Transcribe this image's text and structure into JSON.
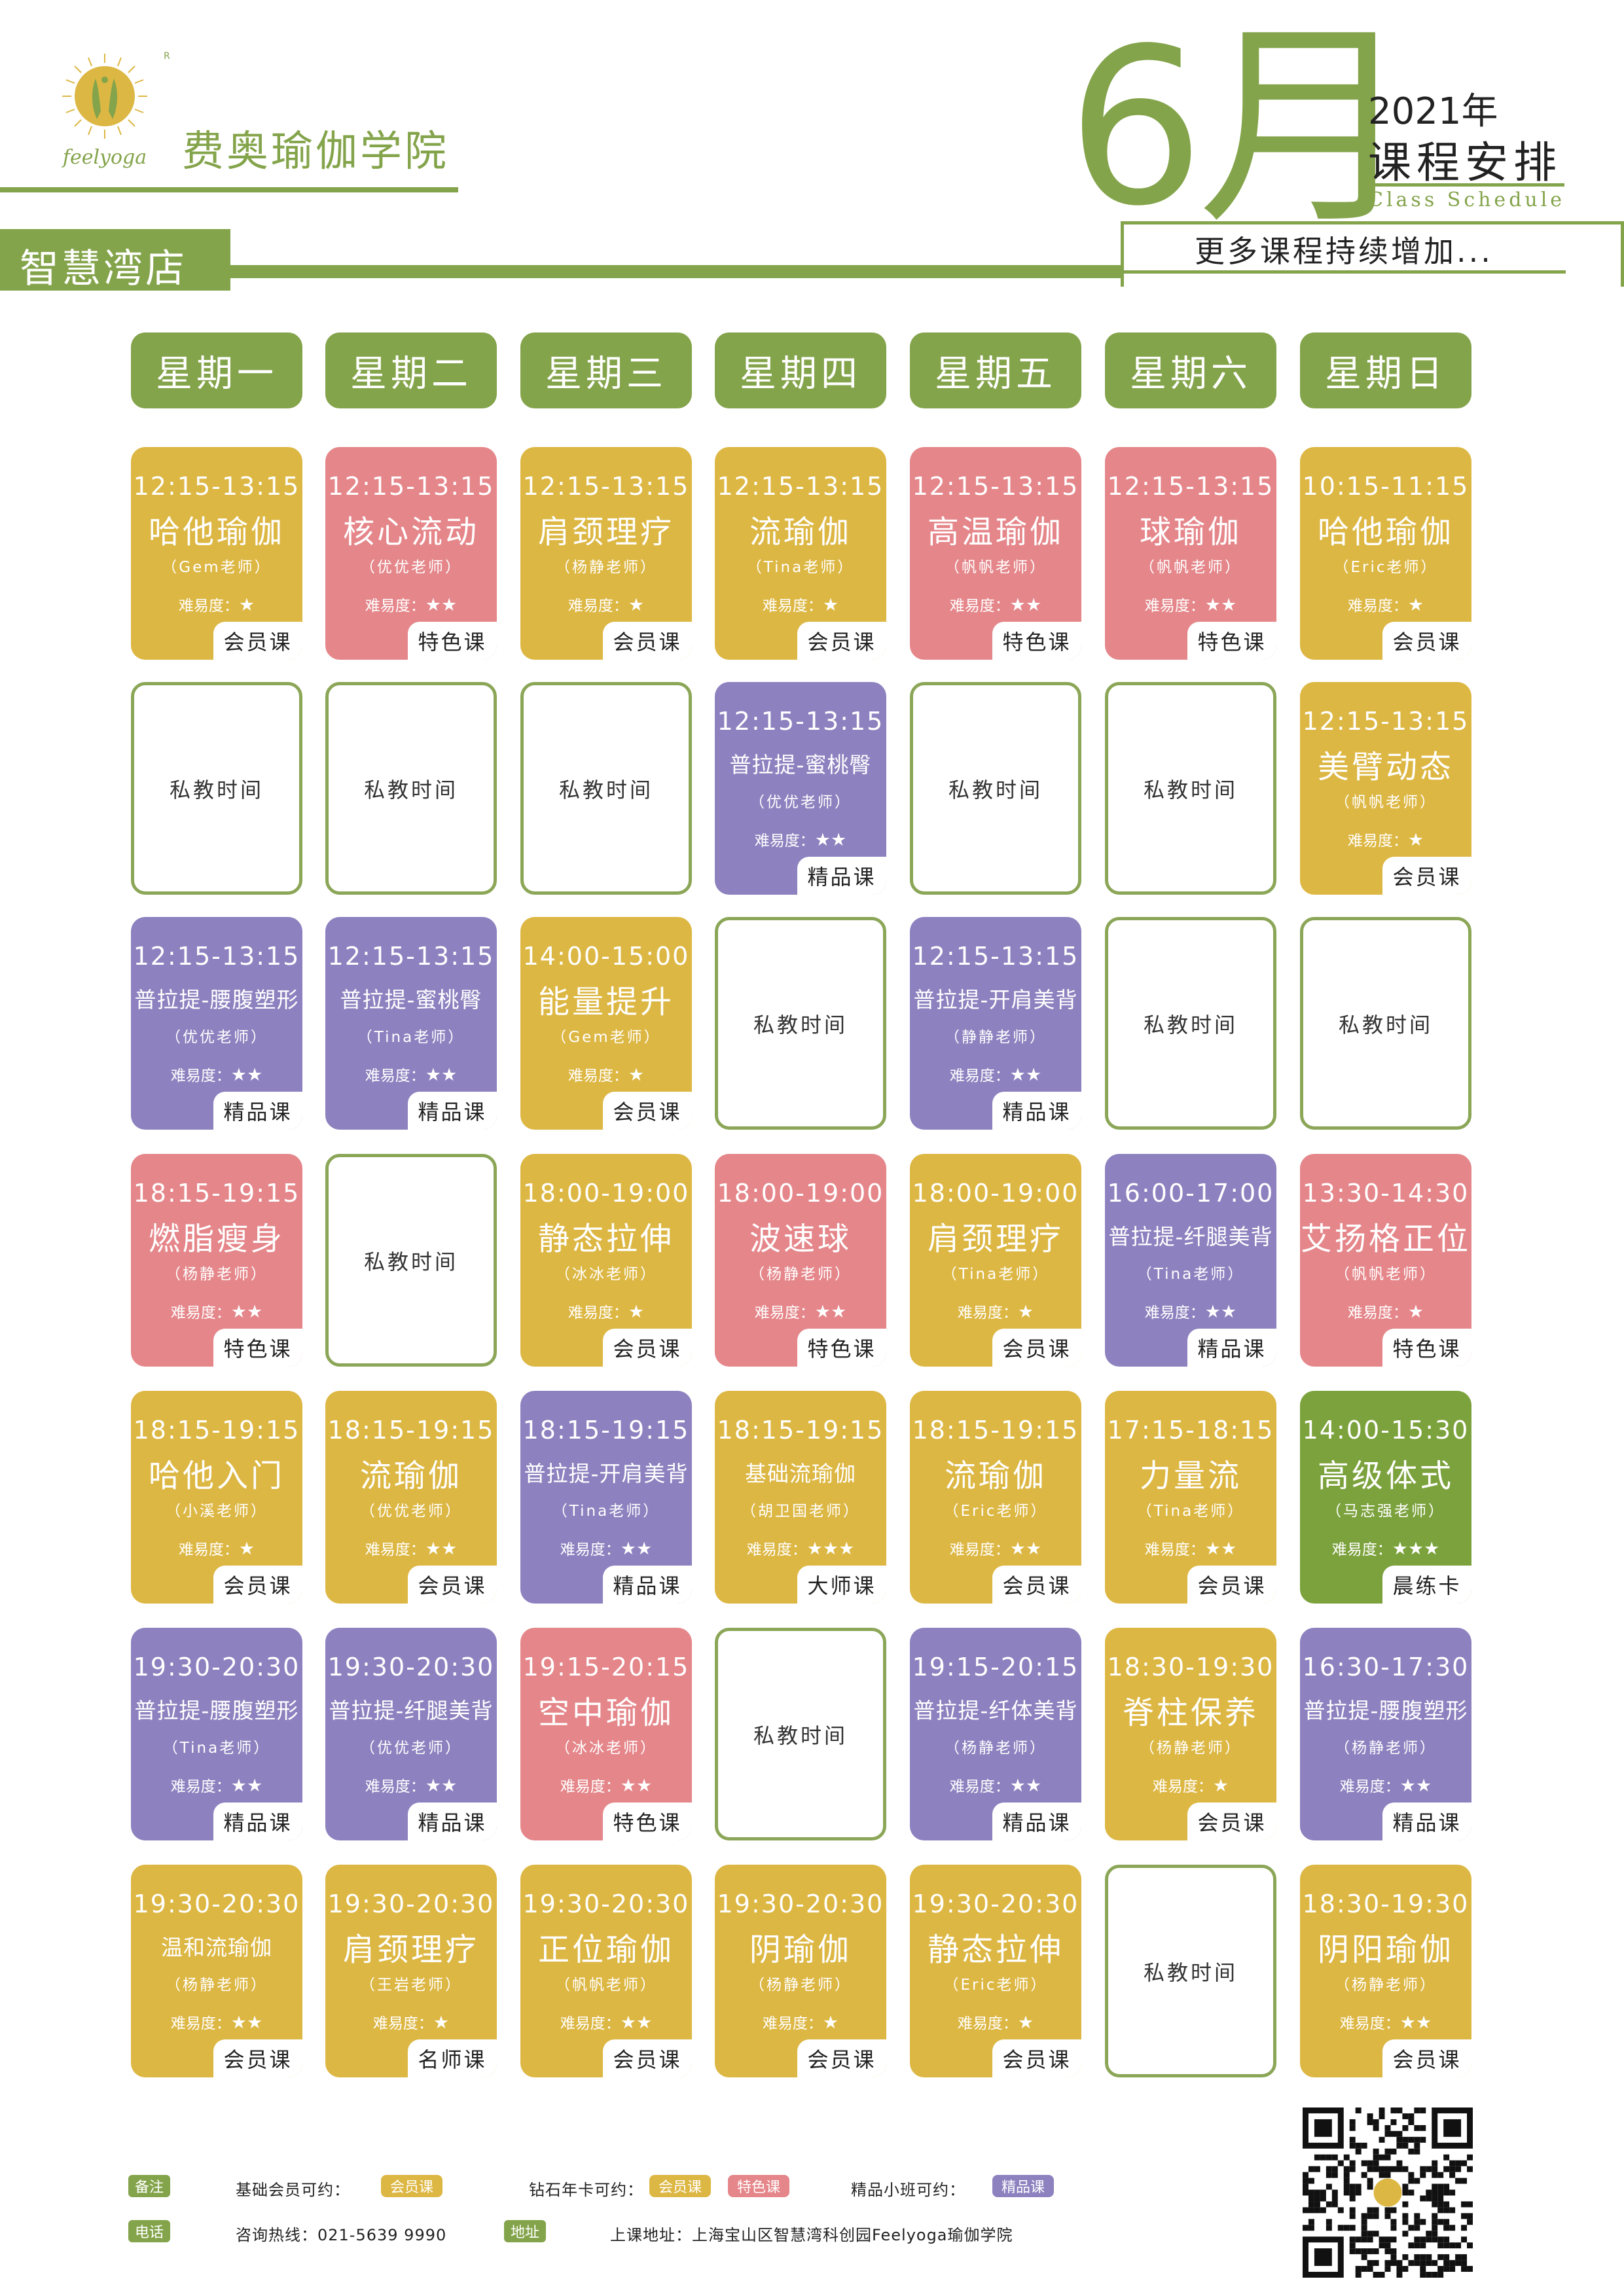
{
  "brand": {
    "logo_text": "feelyoga",
    "registered": "R",
    "name": "费奥瑜伽学院"
  },
  "header": {
    "month": "6月",
    "year": "2021年",
    "title": "课程安排",
    "subtitle": "Class Schedule",
    "more": "更多课程持续增加..."
  },
  "store": "智慧湾店",
  "days": [
    "星期一",
    "星期二",
    "星期三",
    "星期四",
    "星期五",
    "星期六",
    "星期日"
  ],
  "colors": {
    "green": "#84a44b",
    "yellow": "#ddb743",
    "pink": "#e5868a",
    "purple": "#8d82bf",
    "lime": "#7ca23d",
    "border": "#8ba657"
  },
  "private_label": "私教时间",
  "difficulty_label": "难易度：",
  "schedule": [
    [
      {
        "time": "12:15-13:15",
        "name": "哈他瑜伽",
        "teacher": "（Gem老师）",
        "stars": "★",
        "type": "会员课",
        "color": "yellow"
      },
      {
        "time": "12:15-13:15",
        "name": "核心流动",
        "teacher": "（优优老师）",
        "stars": "★★",
        "type": "特色课",
        "color": "pink"
      },
      {
        "time": "12:15-13:15",
        "name": "肩颈理疗",
        "teacher": "（杨静老师）",
        "stars": "★",
        "type": "会员课",
        "color": "yellow"
      },
      {
        "time": "12:15-13:15",
        "name": "流瑜伽",
        "teacher": "（Tina老师）",
        "stars": "★",
        "type": "会员课",
        "color": "yellow"
      },
      {
        "time": "12:15-13:15",
        "name": "高温瑜伽",
        "teacher": "（帆帆老师）",
        "stars": "★★",
        "type": "特色课",
        "color": "pink"
      },
      {
        "time": "12:15-13:15",
        "name": "球瑜伽",
        "teacher": "（帆帆老师）",
        "stars": "★★",
        "type": "特色课",
        "color": "pink"
      },
      {
        "time": "10:15-11:15",
        "name": "哈他瑜伽",
        "teacher": "（Eric老师）",
        "stars": "★",
        "type": "会员课",
        "color": "yellow"
      }
    ],
    [
      {
        "private": true
      },
      {
        "private": true
      },
      {
        "private": true
      },
      {
        "time": "12:15-13:15",
        "name": "普拉提-蜜桃臀",
        "teacher": "（优优老师）",
        "stars": "★★",
        "type": "精品课",
        "color": "purple",
        "small": true
      },
      {
        "private": true
      },
      {
        "private": true
      },
      {
        "time": "12:15-13:15",
        "name": "美臂动态",
        "teacher": "（帆帆老师）",
        "stars": "★",
        "type": "会员课",
        "color": "yellow"
      }
    ],
    [
      {
        "time": "12:15-13:15",
        "name": "普拉提-腰腹塑形",
        "teacher": "（优优老师）",
        "stars": "★★",
        "type": "精品课",
        "color": "purple",
        "small": true
      },
      {
        "time": "12:15-13:15",
        "name": "普拉提-蜜桃臀",
        "teacher": "（Tina老师）",
        "stars": "★★",
        "type": "精品课",
        "color": "purple",
        "small": true
      },
      {
        "time": "14:00-15:00",
        "name": "能量提升",
        "teacher": "（Gem老师）",
        "stars": "★",
        "type": "会员课",
        "color": "yellow"
      },
      {
        "private": true
      },
      {
        "time": "12:15-13:15",
        "name": "普拉提-开肩美背",
        "teacher": "（静静老师）",
        "stars": "★★",
        "type": "精品课",
        "color": "purple",
        "small": true
      },
      {
        "private": true
      },
      {
        "private": true
      }
    ],
    [
      {
        "time": "18:15-19:15",
        "name": "燃脂瘦身",
        "teacher": "（杨静老师）",
        "stars": "★★",
        "type": "特色课",
        "color": "pink"
      },
      {
        "private": true
      },
      {
        "time": "18:00-19:00",
        "name": "静态拉伸",
        "teacher": "（冰冰老师）",
        "stars": "★",
        "type": "会员课",
        "color": "yellow"
      },
      {
        "time": "18:00-19:00",
        "name": "波速球",
        "teacher": "（杨静老师）",
        "stars": "★★",
        "type": "特色课",
        "color": "pink"
      },
      {
        "time": "18:00-19:00",
        "name": "肩颈理疗",
        "teacher": "（Tina老师）",
        "stars": "★",
        "type": "会员课",
        "color": "yellow"
      },
      {
        "time": "16:00-17:00",
        "name": "普拉提-纤腿美背",
        "teacher": "（Tina老师）",
        "stars": "★★",
        "type": "精品课",
        "color": "purple",
        "small": true
      },
      {
        "time": "13:30-14:30",
        "name": "艾扬格正位",
        "teacher": "（帆帆老师）",
        "stars": "★",
        "type": "特色课",
        "color": "pink"
      }
    ],
    [
      {
        "time": "18:15-19:15",
        "name": "哈他入门",
        "teacher": "（小溪老师）",
        "stars": "★",
        "type": "会员课",
        "color": "yellow"
      },
      {
        "time": "18:15-19:15",
        "name": "流瑜伽",
        "teacher": "（优优老师）",
        "stars": "★★",
        "type": "会员课",
        "color": "yellow"
      },
      {
        "time": "18:15-19:15",
        "name": "普拉提-开肩美背",
        "teacher": "（Tina老师）",
        "stars": "★★",
        "type": "精品课",
        "color": "purple",
        "small": true
      },
      {
        "time": "18:15-19:15",
        "name": "基础流瑜伽",
        "teacher": "（胡卫国老师）",
        "stars": "★★★",
        "type": "大师课",
        "color": "yellow",
        "small": true
      },
      {
        "time": "18:15-19:15",
        "name": "流瑜伽",
        "teacher": "（Eric老师）",
        "stars": "★★",
        "type": "会员课",
        "color": "yellow"
      },
      {
        "time": "17:15-18:15",
        "name": "力量流",
        "teacher": "（Tina老师）",
        "stars": "★★",
        "type": "会员课",
        "color": "yellow"
      },
      {
        "time": "14:00-15:30",
        "name": "高级体式",
        "teacher": "（马志强老师）",
        "stars": "★★★",
        "type": "晨练卡",
        "color": "lime"
      }
    ],
    [
      {
        "time": "19:30-20:30",
        "name": "普拉提-腰腹塑形",
        "teacher": "（Tina老师）",
        "stars": "★★",
        "type": "精品课",
        "color": "purple",
        "small": true
      },
      {
        "time": "19:30-20:30",
        "name": "普拉提-纤腿美背",
        "teacher": "（优优老师）",
        "stars": "★★",
        "type": "精品课",
        "color": "purple",
        "small": true
      },
      {
        "time": "19:15-20:15",
        "name": "空中瑜伽",
        "teacher": "（冰冰老师）",
        "stars": "★★",
        "type": "特色课",
        "color": "pink"
      },
      {
        "private": true
      },
      {
        "time": "19:15-20:15",
        "name": "普拉提-纤体美背",
        "teacher": "（杨静老师）",
        "stars": "★★",
        "type": "精品课",
        "color": "purple",
        "small": true
      },
      {
        "time": "18:30-19:30",
        "name": "脊柱保养",
        "teacher": "（杨静老师）",
        "stars": "★",
        "type": "会员课",
        "color": "yellow"
      },
      {
        "time": "16:30-17:30",
        "name": "普拉提-腰腹塑形",
        "teacher": "（杨静老师）",
        "stars": "★★",
        "type": "精品课",
        "color": "purple",
        "small": true
      }
    ],
    [
      {
        "time": "19:30-20:30",
        "name": "温和流瑜伽",
        "teacher": "（杨静老师）",
        "stars": "★★",
        "type": "会员课",
        "color": "yellow",
        "small": true
      },
      {
        "time": "19:30-20:30",
        "name": "肩颈理疗",
        "teacher": "（王岩老师）",
        "stars": "★",
        "type": "名师课",
        "color": "yellow"
      },
      {
        "time": "19:30-20:30",
        "name": "正位瑜伽",
        "teacher": "（帆帆老师）",
        "stars": "★★",
        "type": "会员课",
        "color": "yellow"
      },
      {
        "time": "19:30-20:30",
        "name": "阴瑜伽",
        "teacher": "（杨静老师）",
        "stars": "★",
        "type": "会员课",
        "color": "yellow"
      },
      {
        "time": "19:30-20:30",
        "name": "静态拉伸",
        "teacher": "（Eric老师）",
        "stars": "★",
        "type": "会员课",
        "color": "yellow"
      },
      {
        "private": true
      },
      {
        "time": "18:30-19:30",
        "name": "阴阳瑜伽",
        "teacher": "（杨静老师）",
        "stars": "★★",
        "type": "会员课",
        "color": "yellow"
      }
    ]
  ],
  "footer": {
    "note_label": "备注",
    "basic_member": "基础会员可约：",
    "basic_chip": "会员课",
    "diamond": "钻石年卡可约：",
    "diamond_chip1": "会员课",
    "diamond_chip2": "特色课",
    "boutique": "精品小班可约：",
    "boutique_chip": "精品课",
    "phone_label": "电话",
    "hotline": "咨询热线：021-5639 9990",
    "address_label": "地址",
    "address": "上课地址：上海宝山区智慧湾科创园Feelyoga瑜伽学院"
  }
}
